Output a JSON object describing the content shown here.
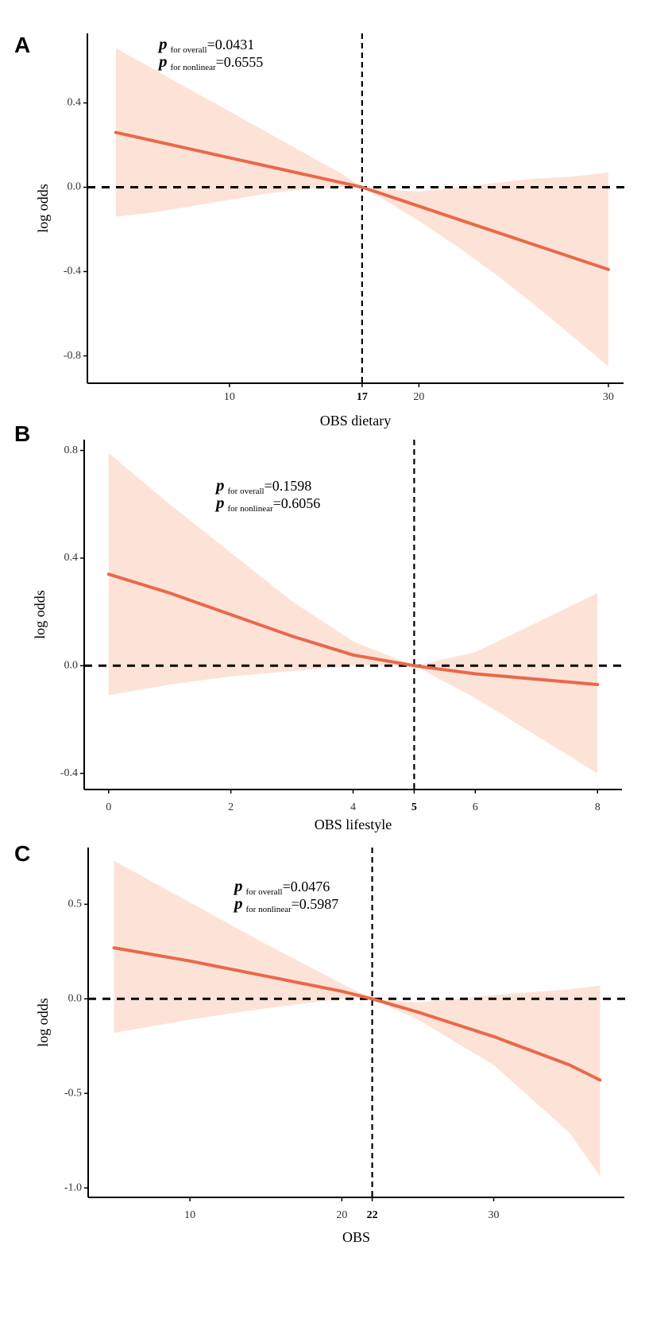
{
  "chart_data": [
    {
      "panel": "A",
      "type": "line",
      "xlabel": "OBS dietary",
      "ylabel": "log odds",
      "xlim": [
        2.5,
        30.8
      ],
      "ylim": [
        -0.93,
        0.73
      ],
      "xticks": [
        10,
        17,
        20,
        30
      ],
      "xticklabels": [
        "10",
        "17",
        "20",
        "30"
      ],
      "xticks_bold": [
        17
      ],
      "yticks": [
        0.4,
        0.0,
        -0.4,
        -0.8
      ],
      "yticklabels": [
        "0.4",
        "0.0",
        "-0.4",
        "-0.8"
      ],
      "ref_x": 17,
      "ref_y": 0,
      "annotation": {
        "overall_label": "for overall",
        "overall_value": "=0.0431",
        "nonlinear_label": "for nonlinear",
        "nonlinear_value": "=0.6555"
      },
      "x": [
        4,
        6,
        8,
        10,
        12,
        14,
        16,
        17,
        18,
        20,
        22,
        24,
        26,
        28,
        30
      ],
      "y": [
        0.26,
        0.22,
        0.18,
        0.14,
        0.1,
        0.06,
        0.02,
        0.0,
        -0.03,
        -0.09,
        -0.15,
        -0.21,
        -0.27,
        -0.33,
        -0.39
      ],
      "lower": [
        -0.14,
        -0.12,
        -0.09,
        -0.06,
        -0.03,
        -0.01,
        0.0,
        0.0,
        -0.05,
        -0.16,
        -0.28,
        -0.41,
        -0.55,
        -0.7,
        -0.85
      ],
      "upper": [
        0.66,
        0.56,
        0.46,
        0.36,
        0.26,
        0.16,
        0.06,
        0.0,
        -0.01,
        -0.02,
        0.0,
        0.02,
        0.04,
        0.05,
        0.07
      ]
    },
    {
      "panel": "B",
      "type": "line",
      "xlabel": "OBS lifestyle",
      "ylabel": "log odds",
      "xlim": [
        -0.4,
        8.4
      ],
      "ylim": [
        -0.46,
        0.84
      ],
      "xticks": [
        0,
        2,
        4,
        5,
        6,
        8
      ],
      "xticklabels": [
        "0",
        "2",
        "4",
        "5",
        "6",
        "8"
      ],
      "xticks_bold": [
        5
      ],
      "yticks": [
        0.8,
        0.4,
        0.0,
        -0.4
      ],
      "yticklabels": [
        "0.8",
        "0.4",
        "0.0",
        "-0.4"
      ],
      "ref_x": 5,
      "ref_y": 0,
      "annotation": {
        "overall_label": "for overall",
        "overall_value": "=0.1598",
        "nonlinear_label": "for nonlinear",
        "nonlinear_value": "=0.6056"
      },
      "x": [
        0,
        1,
        2,
        3,
        4,
        5,
        6,
        7,
        8
      ],
      "y": [
        0.34,
        0.27,
        0.19,
        0.11,
        0.04,
        0.0,
        -0.03,
        -0.05,
        -0.07
      ],
      "lower": [
        -0.11,
        -0.07,
        -0.04,
        -0.02,
        0.0,
        0.0,
        -0.12,
        -0.26,
        -0.4
      ],
      "upper": [
        0.79,
        0.6,
        0.42,
        0.24,
        0.09,
        0.0,
        0.05,
        0.16,
        0.27
      ]
    },
    {
      "panel": "C",
      "type": "line",
      "xlabel": "OBS",
      "ylabel": "log odds",
      "xlim": [
        3.3,
        38.6
      ],
      "ylim": [
        -1.05,
        0.8
      ],
      "xticks": [
        10,
        20,
        22,
        30
      ],
      "xticklabels": [
        "10",
        "20",
        "22",
        "30"
      ],
      "xticks_bold": [
        22
      ],
      "yticks": [
        0.5,
        0.0,
        -0.5,
        -1.0
      ],
      "yticklabels": [
        "0.5",
        "0.0",
        "-0.5",
        "-1.0"
      ],
      "ref_x": 22,
      "ref_y": 0,
      "annotation": {
        "overall_label": "for overall",
        "overall_value": "=0.0476",
        "nonlinear_label": "for nonlinear",
        "nonlinear_value": "=0.5987"
      },
      "x": [
        5,
        10,
        15,
        20,
        22,
        25,
        30,
        35,
        37
      ],
      "y": [
        0.27,
        0.2,
        0.12,
        0.04,
        0.0,
        -0.07,
        -0.2,
        -0.35,
        -0.43
      ],
      "lower": [
        -0.18,
        -0.11,
        -0.05,
        0.0,
        0.0,
        -0.11,
        -0.35,
        -0.71,
        -0.94
      ],
      "upper": [
        0.73,
        0.51,
        0.29,
        0.08,
        0.0,
        -0.02,
        0.02,
        0.05,
        0.07
      ]
    }
  ],
  "panel_labels": [
    "A",
    "B",
    "C"
  ],
  "p_symbol": "p",
  "colors": {
    "line": "#E8694A",
    "band": "#FDE3D7",
    "axis": "#000000",
    "ref": "#000000"
  }
}
